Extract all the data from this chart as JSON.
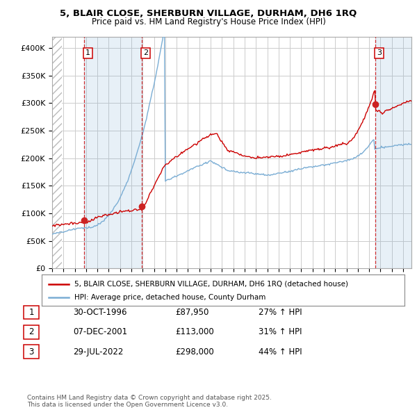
{
  "title_line1": "5, BLAIR CLOSE, SHERBURN VILLAGE, DURHAM, DH6 1RQ",
  "title_line2": "Price paid vs. HM Land Registry's House Price Index (HPI)",
  "xlim_start": 1994.0,
  "xlim_end": 2025.75,
  "ylim_min": 0,
  "ylim_max": 420000,
  "yticks": [
    0,
    50000,
    100000,
    150000,
    200000,
    250000,
    300000,
    350000,
    400000
  ],
  "ytick_labels": [
    "£0",
    "£50K",
    "£100K",
    "£150K",
    "£200K",
    "£250K",
    "£300K",
    "£350K",
    "£400K"
  ],
  "sale_dates": [
    1996.83,
    2001.92,
    2022.56
  ],
  "sale_prices": [
    87950,
    113000,
    298000
  ],
  "sale_labels": [
    "1",
    "2",
    "3"
  ],
  "legend_entries": [
    "5, BLAIR CLOSE, SHERBURN VILLAGE, DURHAM, DH6 1RQ (detached house)",
    "HPI: Average price, detached house, County Durham"
  ],
  "table_rows": [
    [
      "1",
      "30-OCT-1996",
      "£87,950",
      "27% ↑ HPI"
    ],
    [
      "2",
      "07-DEC-2001",
      "£113,000",
      "31% ↑ HPI"
    ],
    [
      "3",
      "29-JUL-2022",
      "£298,000",
      "44% ↑ HPI"
    ]
  ],
  "footer": "Contains HM Land Registry data © Crown copyright and database right 2025.\nThis data is licensed under the Open Government Licence v3.0.",
  "line_color_red": "#cc0000",
  "line_color_blue": "#7aadd4",
  "shade_color": "#ddeeff",
  "background_color": "#ffffff",
  "grid_color": "#cccccc"
}
